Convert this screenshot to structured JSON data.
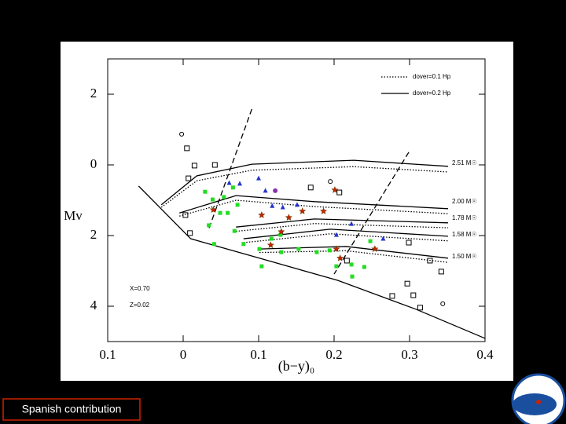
{
  "chart_data": {
    "type": "scatter",
    "xlabel": "(b−y)₀",
    "ylabel": "Mv",
    "xlim": [
      -0.1,
      0.4
    ],
    "ylim": [
      -3,
      5
    ],
    "y_inverted": true,
    "xticks": [
      {
        "value": -0.1,
        "label": "0.1"
      },
      0,
      0.1,
      0.2,
      0.3,
      0.4
    ],
    "yticks": [
      {
        "value": -2,
        "label": "2"
      },
      0,
      2,
      4
    ],
    "legend": "upper right",
    "annotations": [
      "2.51 M☉",
      "2.00 M☉",
      "1.78 M☉",
      "1.58 M☉",
      "1.50 M☉",
      "X=0.70",
      "Z=0.02"
    ],
    "series": [
      {
        "name": "dover=0.1 Hp",
        "line": "dotted",
        "color": "#000000",
        "x": [
          -0.029,
          0.018,
          0.091,
          0.226,
          0.351,
          null,
          -0.005,
          0.07,
          0.174,
          0.351,
          null,
          0.07,
          0.174,
          0.351,
          null,
          0.08,
          0.195,
          0.351,
          null,
          0.101,
          0.216,
          0.351
        ],
        "values": [
          1.2,
          0.45,
          0.15,
          0.05,
          0.2,
          null,
          1.45,
          1.0,
          1.18,
          1.38,
          null,
          1.88,
          1.66,
          1.78,
          null,
          2.2,
          1.95,
          2.15,
          null,
          2.48,
          2.43,
          2.76
        ]
      },
      {
        "name": "dover=0.2 Hp",
        "line": "solid",
        "color": "#000000",
        "x": [
          -0.029,
          0.018,
          0.091,
          0.226,
          0.351,
          null,
          -0.005,
          0.07,
          0.174,
          0.351,
          null,
          0.07,
          0.174,
          0.351,
          null,
          0.08,
          0.195,
          0.351,
          null,
          0.101,
          0.216,
          0.351
        ],
        "values": [
          1.13,
          0.31,
          -0.02,
          -0.13,
          0.04,
          null,
          1.36,
          0.87,
          1.04,
          1.24,
          null,
          1.76,
          1.53,
          1.64,
          null,
          2.09,
          1.82,
          2.02,
          null,
          2.38,
          2.31,
          2.64
        ]
      },
      {
        "line": "solid",
        "color": "#000000",
        "x": [
          -0.059,
          0.01,
          0.101,
          0.205,
          0.309,
          0.4
        ],
        "values": [
          0.6,
          2.09,
          2.64,
          3.27,
          4.09,
          4.91
        ]
      },
      {
        "line": "dashed",
        "color": "#000000",
        "x": [
          0.091,
          0.033
        ],
        "values": [
          -1.58,
          1.87
        ]
      },
      {
        "line": "dashed",
        "color": "#000000",
        "x": [
          0.299,
          0.2
        ],
        "values": [
          -0.36,
          3.09
        ]
      },
      {
        "marker": "open-square",
        "color": "#000000",
        "x": [
          0.005,
          0.015,
          0.042,
          0.007,
          0.003,
          0.009,
          0.169,
          0.207,
          0.299,
          0.327,
          0.342,
          0.297,
          0.277,
          0.314,
          0.305,
          0.217
        ],
        "values": [
          -0.47,
          0.02,
          0.0,
          0.38,
          1.42,
          1.93,
          0.64,
          0.78,
          2.2,
          2.71,
          3.02,
          3.36,
          3.71,
          4.04,
          3.69,
          2.71
        ]
      },
      {
        "marker": "open-circle",
        "color": "#000000",
        "x": [
          -0.002,
          0.195,
          0.344
        ],
        "values": [
          -0.87,
          0.47,
          3.93
        ]
      },
      {
        "marker": "square",
        "color": "#22dd22",
        "x": [
          0.029,
          0.039,
          0.054,
          0.066,
          0.072,
          0.034,
          0.041,
          0.059,
          0.068,
          0.08,
          0.101,
          0.117,
          0.129,
          0.104,
          0.13,
          0.153,
          0.177,
          0.194,
          0.203,
          0.223,
          0.224,
          0.24,
          0.248,
          0.049
        ],
        "values": [
          0.76,
          0.98,
          0.91,
          0.64,
          1.13,
          1.71,
          2.24,
          1.36,
          1.87,
          2.24,
          2.38,
          2.09,
          1.98,
          2.87,
          2.47,
          2.38,
          2.47,
          2.42,
          2.87,
          2.82,
          3.16,
          2.89,
          2.16,
          1.36
        ]
      },
      {
        "marker": "triangle",
        "color": "#2233cc",
        "x": [
          0.061,
          0.075,
          0.1,
          0.109,
          0.118,
          0.132,
          0.151,
          0.203,
          0.223,
          0.265
        ],
        "values": [
          0.51,
          0.53,
          0.38,
          0.73,
          1.16,
          1.2,
          1.13,
          1.98,
          1.67,
          2.09
        ]
      },
      {
        "marker": "star",
        "color": "#cc2200",
        "x": [
          0.04,
          0.104,
          0.13,
          0.14,
          0.158,
          0.186,
          0.201,
          0.116,
          0.203,
          0.208,
          0.254
        ],
        "values": [
          1.27,
          1.42,
          1.89,
          1.49,
          1.31,
          1.31,
          0.71,
          2.27,
          2.38,
          2.64,
          2.38
        ]
      },
      {
        "marker": "circle",
        "color": "#8833aa",
        "x": [
          0.122
        ],
        "values": [
          0.73
        ]
      }
    ]
  },
  "footer": {
    "text": "Spanish contribution"
  }
}
